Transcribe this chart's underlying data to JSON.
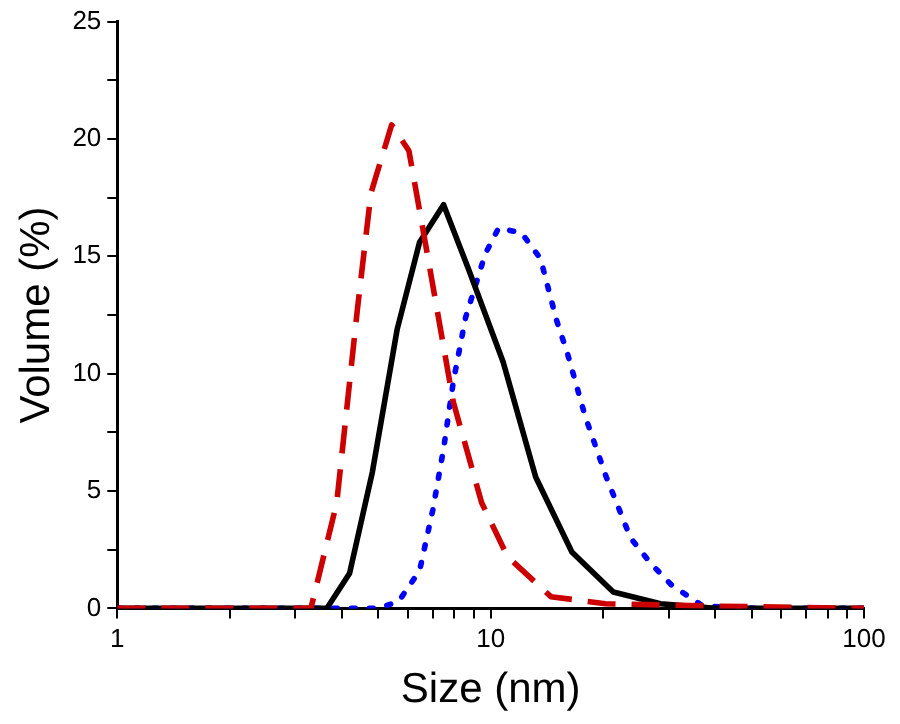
{
  "chart_data": {
    "type": "line",
    "xlabel": "Size (nm)",
    "ylabel": "Volume (%)",
    "log": "x",
    "grid": false,
    "legend": false,
    "marker": "none",
    "xlim": [
      1,
      100
    ],
    "xticks": [
      1,
      {
        "value": 2,
        "label": null
      },
      {
        "value": 3,
        "label": null
      },
      {
        "value": 4,
        "label": null
      },
      {
        "value": 5,
        "label": null
      },
      {
        "value": 6,
        "label": null
      },
      {
        "value": 7,
        "label": null
      },
      {
        "value": 8,
        "label": null
      },
      {
        "value": 9,
        "label": null
      },
      10,
      {
        "value": 20,
        "label": null
      },
      {
        "value": 30,
        "label": null
      },
      {
        "value": 40,
        "label": null
      },
      {
        "value": 50,
        "label": null
      },
      {
        "value": 60,
        "label": null
      },
      {
        "value": 70,
        "label": null
      },
      {
        "value": 80,
        "label": null
      },
      {
        "value": 90,
        "label": null
      },
      100
    ],
    "ylim": [
      0,
      25
    ],
    "yticks": [
      0,
      {
        "value": 2.5,
        "label": null
      },
      5,
      {
        "value": 7.5,
        "label": null
      },
      10,
      {
        "value": 12.5,
        "label": null
      },
      15,
      {
        "value": 17.5,
        "label": null
      },
      20,
      {
        "value": 22.5,
        "label": null
      },
      25
    ],
    "series": [
      {
        "color": "#cc0000",
        "line_style": "dashed",
        "x": [
          1,
          3.3,
          3.87,
          4.4,
          4.78,
          5.43,
          6.04,
          6.8,
          7.94,
          9.46,
          11.1,
          14.5,
          20.3,
          38.6,
          100
        ],
        "values": [
          0,
          0,
          4.5,
          12.8,
          17.7,
          20.6,
          19.5,
          14.9,
          8.8,
          4.5,
          2.2,
          0.5,
          0.2,
          0.1,
          0
        ]
      },
      {
        "color": "#000000",
        "line_style": "solid",
        "x": [
          1,
          3.64,
          4.19,
          4.82,
          5.62,
          6.45,
          7.48,
          8.7,
          10.8,
          13.2,
          16.5,
          21.3,
          28.5,
          40,
          100
        ],
        "values": [
          0,
          0,
          1.5,
          5.8,
          11.9,
          15.6,
          17.2,
          14.5,
          10.5,
          5.6,
          2.4,
          0.7,
          0.2,
          0,
          0
        ]
      },
      {
        "color": "#0000ff",
        "line_style": "dotted",
        "x": [
          1,
          5.0,
          5.67,
          6.45,
          7.0,
          7.48,
          7.95,
          8.57,
          9.67,
          10.5,
          12.1,
          13.6,
          15.0,
          16.1,
          17.9,
          20.4,
          23.7,
          26.9,
          30.5,
          37,
          52,
          100
        ],
        "values": [
          0,
          0,
          0.3,
          1.6,
          4.2,
          6.8,
          9.7,
          12.4,
          15.1,
          16.2,
          16.0,
          14.9,
          12.3,
          10.8,
          8.2,
          5.6,
          3.0,
          1.9,
          1.0,
          0.1,
          0,
          0
        ]
      }
    ]
  }
}
